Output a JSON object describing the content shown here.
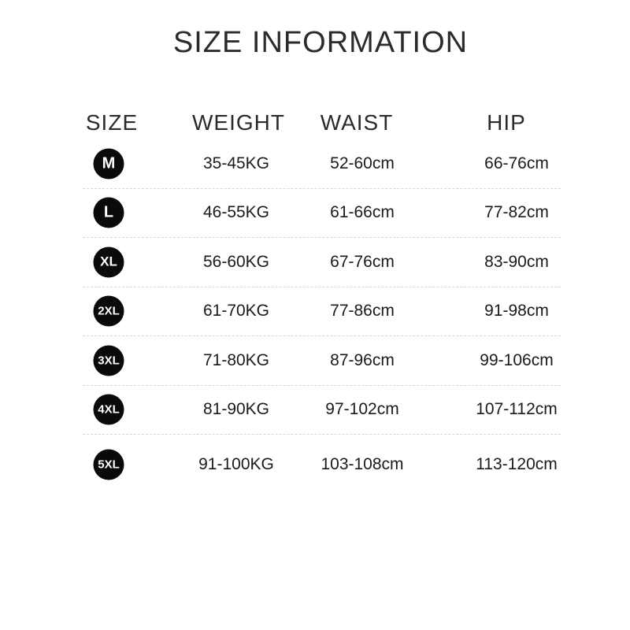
{
  "title": "SIZE INFORMATION",
  "table": {
    "headers": [
      "SIZE",
      "WEIGHT",
      "WAIST",
      "HIP"
    ],
    "rows": [
      {
        "size": "M",
        "weight": "35-45KG",
        "waist": "52-60cm",
        "hip": "66-76cm"
      },
      {
        "size": "L",
        "weight": "46-55KG",
        "waist": "61-66cm",
        "hip": "77-82cm"
      },
      {
        "size": "XL",
        "weight": "56-60KG",
        "waist": "67-76cm",
        "hip": "83-90cm"
      },
      {
        "size": "2XL",
        "weight": "61-70KG",
        "waist": "77-86cm",
        "hip": "91-98cm"
      },
      {
        "size": "3XL",
        "weight": "71-80KG",
        "waist": "87-96cm",
        "hip": "99-106cm"
      },
      {
        "size": "4XL",
        "weight": "81-90KG",
        "waist": "97-102cm",
        "hip": "107-112cm"
      },
      {
        "size": "5XL",
        "weight": "91-100KG",
        "waist": "103-108cm",
        "hip": "113-120cm"
      }
    ]
  },
  "colors": {
    "background": "#ffffff",
    "badge": "#0a0a0a",
    "badge_text": "#ffffff",
    "text": "#1b1b1b",
    "divider": "#d6d6d6"
  },
  "chart_data": {
    "type": "table",
    "title": "SIZE INFORMATION",
    "columns": [
      "SIZE",
      "WEIGHT",
      "WAIST",
      "HIP"
    ],
    "rows": [
      [
        "M",
        "35-45KG",
        "52-60cm",
        "66-76cm"
      ],
      [
        "L",
        "46-55KG",
        "61-66cm",
        "77-82cm"
      ],
      [
        "XL",
        "56-60KG",
        "67-76cm",
        "83-90cm"
      ],
      [
        "2XL",
        "61-70KG",
        "77-86cm",
        "91-98cm"
      ],
      [
        "3XL",
        "71-80KG",
        "87-96cm",
        "99-106cm"
      ],
      [
        "4XL",
        "81-90KG",
        "97-102cm",
        "107-112cm"
      ],
      [
        "5XL",
        "91-100KG",
        "103-108cm",
        "113-120cm"
      ]
    ]
  }
}
